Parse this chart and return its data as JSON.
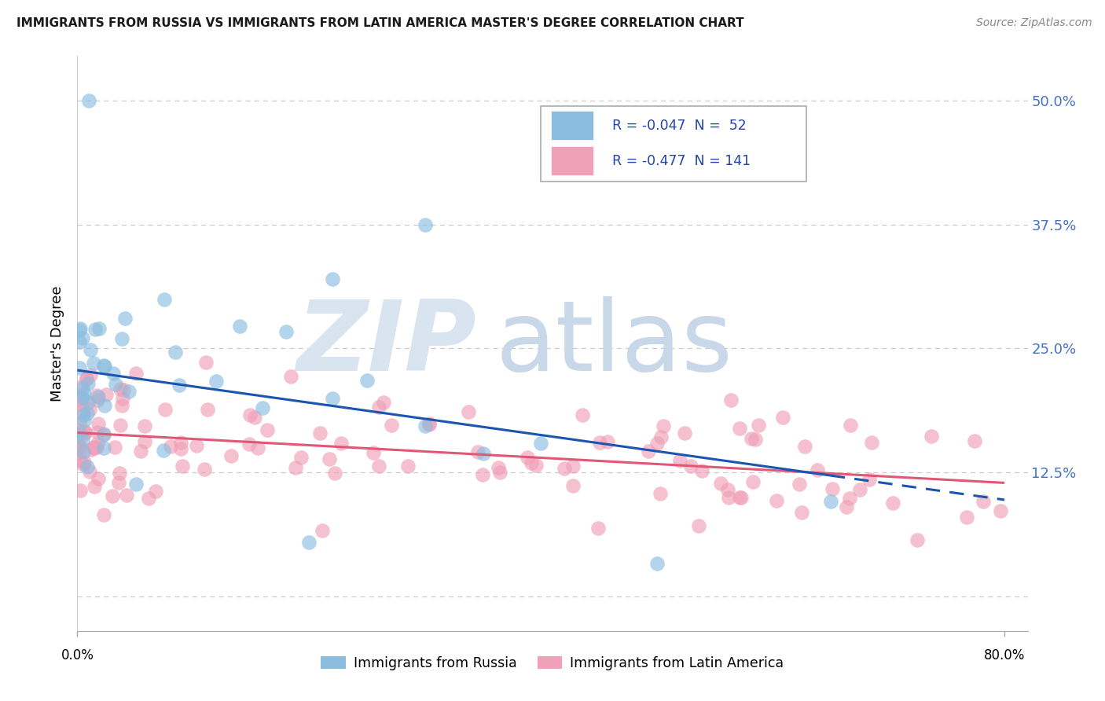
{
  "title": "IMMIGRANTS FROM RUSSIA VS IMMIGRANTS FROM LATIN AMERICA MASTER'S DEGREE CORRELATION CHART",
  "source": "Source: ZipAtlas.com",
  "ylabel": "Master's Degree",
  "xlim": [
    0.0,
    0.82
  ],
  "ylim": [
    -0.035,
    0.545
  ],
  "ytick_vals": [
    0.0,
    0.125,
    0.25,
    0.375,
    0.5
  ],
  "ytick_labels": [
    "",
    "12.5%",
    "25.0%",
    "37.5%",
    "50.0%"
  ],
  "russia_color": "#8bbde0",
  "latam_color": "#f0a0b8",
  "russia_line_color": "#1a56b0",
  "latam_line_color": "#e05878",
  "grid_color": "#cccccc",
  "title_color": "#1a1a1a",
  "source_color": "#888888",
  "axis_label_color": "#4472c4",
  "russia_seed": 42,
  "latam_seed": 99,
  "legend_text_color": "#4472c4",
  "legend_r_color": "#2244aa",
  "watermark_zip_color": "#d8e4f0",
  "watermark_atlas_color": "#c8d8e8"
}
